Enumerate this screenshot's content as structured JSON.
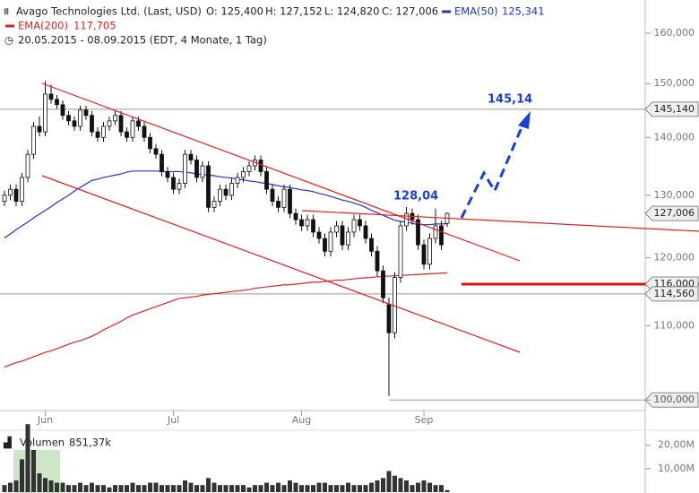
{
  "chart_data": {
    "type": "candlestick",
    "title": "Avago Technologies Ltd. (Last, USD)",
    "quote": [
      "O: 125,400",
      "H: 127,152",
      "L: 124,820",
      "C: 127,006"
    ],
    "subtitle": "20.05.2015 - 08.09.2015 (EDT, 4 Monate, 1 Tag)",
    "categories": [
      null,
      null,
      null,
      null,
      null,
      null,
      null,
      "Jun",
      null,
      null,
      null,
      null,
      null,
      null,
      null,
      null,
      null,
      null,
      null,
      null,
      null,
      null,
      null,
      null,
      null,
      null,
      null,
      null,
      null,
      "Jul",
      null,
      null,
      null,
      null,
      null,
      null,
      null,
      null,
      null,
      null,
      null,
      null,
      null,
      null,
      null,
      null,
      null,
      null,
      null,
      null,
      null,
      "Aug",
      null,
      null,
      null,
      null,
      null,
      null,
      null,
      null,
      null,
      null,
      null,
      null,
      null,
      null,
      null,
      null,
      null,
      null,
      null,
      null,
      "Sep",
      null,
      null,
      null,
      null
    ],
    "ohlc": [
      [
        129,
        130.8,
        128.2,
        130
      ],
      [
        130,
        131.8,
        129.2,
        131
      ],
      [
        131,
        131.8,
        128.2,
        129
      ],
      [
        129,
        133.8,
        128.2,
        133
      ],
      [
        133,
        137.8,
        132.2,
        137
      ],
      [
        137,
        142.8,
        136.2,
        142
      ],
      [
        142,
        143.8,
        140.2,
        141
      ],
      [
        141,
        150.5,
        140.2,
        148
      ],
      [
        148,
        149.8,
        146.2,
        147
      ],
      [
        147,
        147.8,
        145.2,
        146
      ],
      [
        146,
        146.8,
        143.2,
        144
      ],
      [
        144,
        144.8,
        142.2,
        143
      ],
      [
        143,
        143.8,
        141.2,
        142
      ],
      [
        142,
        145.8,
        141.2,
        145
      ],
      [
        145,
        145.8,
        143.2,
        144
      ],
      [
        144,
        144.8,
        140.2,
        141
      ],
      [
        141,
        141.8,
        139.2,
        140
      ],
      [
        140,
        142.8,
        139.2,
        142
      ],
      [
        142,
        143.8,
        141.2,
        143
      ],
      [
        143,
        144.8,
        142.2,
        144
      ],
      [
        144,
        144.8,
        140.2,
        141
      ],
      [
        141,
        141.8,
        139.2,
        140
      ],
      [
        140,
        143.8,
        139.2,
        143
      ],
      [
        143,
        143.8,
        141.2,
        142
      ],
      [
        142,
        142.8,
        139.2,
        140
      ],
      [
        140,
        140.8,
        137.2,
        138
      ],
      [
        138,
        138.8,
        136.2,
        137
      ],
      [
        137,
        137.8,
        133.2,
        134
      ],
      [
        134,
        134.8,
        132.2,
        133
      ],
      [
        133,
        133.8,
        130.2,
        131
      ],
      [
        131,
        132.8,
        130.2,
        132
      ],
      [
        132,
        137.8,
        131.2,
        137
      ],
      [
        137,
        137.8,
        135.2,
        136
      ],
      [
        136,
        136.8,
        132.2,
        133
      ],
      [
        133,
        135.8,
        132.2,
        135
      ],
      [
        135,
        135.8,
        127.2,
        128
      ],
      [
        128,
        129.8,
        127.2,
        129
      ],
      [
        129,
        131.8,
        128.2,
        131
      ],
      [
        131,
        131.8,
        129.2,
        130
      ],
      [
        130,
        132.8,
        129.2,
        132
      ],
      [
        132,
        133.8,
        131.2,
        133
      ],
      [
        133,
        134.8,
        132.2,
        134
      ],
      [
        134,
        135.8,
        133.2,
        135
      ],
      [
        135,
        136.8,
        134.2,
        136
      ],
      [
        136,
        136.8,
        133.2,
        134
      ],
      [
        134,
        134.8,
        130.2,
        131
      ],
      [
        131,
        131.8,
        128.2,
        129
      ],
      [
        129,
        129.8,
        127.2,
        128
      ],
      [
        128,
        131.8,
        127.2,
        131
      ],
      [
        131,
        131.8,
        126.2,
        127
      ],
      [
        127,
        127.8,
        125.2,
        126
      ],
      [
        126,
        126.8,
        124.2,
        125
      ],
      [
        125,
        126.8,
        124.2,
        126
      ],
      [
        126,
        126.8,
        123.2,
        124
      ],
      [
        124,
        124.8,
        122.2,
        123
      ],
      [
        123,
        123.8,
        120.2,
        121
      ],
      [
        121,
        124.8,
        120.2,
        124
      ],
      [
        124,
        125.8,
        123.2,
        125
      ],
      [
        125,
        125.8,
        121.2,
        122
      ],
      [
        122,
        124.8,
        121.2,
        124
      ],
      [
        124,
        126.8,
        123.2,
        126
      ],
      [
        126,
        126.8,
        124.2,
        125
      ],
      [
        125,
        125.8,
        122.2,
        123
      ],
      [
        123,
        123.8,
        120.2,
        121
      ],
      [
        121,
        121.8,
        117.2,
        118
      ],
      [
        118,
        118.8,
        113.2,
        114
      ],
      [
        113,
        114,
        100.5,
        109
      ],
      [
        109,
        117.8,
        108.2,
        117
      ],
      [
        117,
        125.8,
        116.2,
        125
      ],
      [
        125,
        128.04,
        124.2,
        127
      ],
      [
        127,
        127.8,
        125.2,
        126
      ],
      [
        126,
        126.8,
        121.2,
        122
      ],
      [
        122,
        122.8,
        118.2,
        119
      ],
      [
        119,
        123.8,
        118.2,
        123
      ],
      [
        123,
        127.8,
        122.2,
        125
      ],
      [
        125,
        125.8,
        121.2,
        122
      ],
      [
        125.4,
        127.152,
        124.82,
        127.006
      ]
    ],
    "series": [
      {
        "name": "EMA(50)",
        "value_label": "125,341",
        "color": "#2233cc",
        "values": [
          123.1,
          123.7,
          124.4,
          125.0,
          125.6,
          126.3,
          126.9,
          127.5,
          128.1,
          128.8,
          129.4,
          130.0,
          130.7,
          131.3,
          131.9,
          132.5,
          132.7,
          133.0,
          133.2,
          133.4,
          133.6,
          133.9,
          134.1,
          134.1,
          134.1,
          134.1,
          134.1,
          134.0,
          134.0,
          134.0,
          134.0,
          133.9,
          133.8,
          133.6,
          133.5,
          133.4,
          133.3,
          133.1,
          133.0,
          132.9,
          132.7,
          132.6,
          132.4,
          132.3,
          132.1,
          132.0,
          131.8,
          131.6,
          131.4,
          131.3,
          131.1,
          130.9,
          130.8,
          130.6,
          130.3,
          130.1,
          129.8,
          129.5,
          129.2,
          129.0,
          128.7,
          128.4,
          128.0,
          127.5,
          127.1,
          126.7,
          126.3,
          125.9,
          125.7,
          125.6,
          125.4,
          125.2,
          125.2,
          125.2,
          125.3,
          125.3,
          125.341
        ]
      },
      {
        "name": "EMA(200)",
        "value_label": "117,705",
        "color": "#dd2222",
        "values": [
          104.3,
          104.6,
          104.9,
          105.1,
          105.4,
          105.7,
          106.0,
          106.3,
          106.5,
          106.8,
          107.1,
          107.4,
          107.7,
          107.9,
          108.2,
          108.5,
          108.9,
          109.4,
          109.8,
          110.2,
          110.6,
          111.1,
          111.5,
          111.8,
          112.1,
          112.4,
          112.7,
          113.0,
          113.3,
          113.6,
          113.9,
          114.0,
          114.1,
          114.2,
          114.4,
          114.5,
          114.6,
          114.7,
          114.8,
          114.9,
          115.0,
          115.1,
          115.2,
          115.4,
          115.5,
          115.6,
          115.7,
          115.8,
          115.9,
          115.9,
          116.0,
          116.1,
          116.2,
          116.3,
          116.3,
          116.4,
          116.5,
          116.6,
          116.6,
          116.7,
          116.8,
          116.9,
          116.96,
          117.0,
          117.1,
          117.15,
          117.2,
          117.25,
          117.3,
          117.35,
          117.4,
          117.45,
          117.5,
          117.55,
          117.6,
          117.65,
          117.705
        ]
      }
    ],
    "ylim": [
      99,
      166
    ],
    "log_scale": true,
    "yticks": [
      {
        "value": 100,
        "label": "100,000"
      },
      {
        "value": 110,
        "label": "110,000"
      },
      {
        "value": 120,
        "label": "120,000"
      },
      {
        "value": 130,
        "label": "130,000"
      },
      {
        "value": 140,
        "label": "140,000"
      },
      {
        "value": 150,
        "label": "150,000"
      },
      {
        "value": 160,
        "label": "160,000"
      }
    ],
    "levels": [
      {
        "value": 145.14,
        "label": "145,140",
        "line": "gray"
      },
      {
        "value": 127.006,
        "label": "127,006",
        "line": "none"
      },
      {
        "value": 116,
        "label": "116,000",
        "line": "red"
      },
      {
        "value": 114.56,
        "label": "114,560",
        "line": "gray"
      },
      {
        "value": 100,
        "label": "100,000",
        "line": "gray"
      }
    ],
    "annotations": [
      "145,14",
      "128,04"
    ],
    "volume": {
      "name": "Volumen",
      "label": "851,37k",
      "color": "#333333",
      "ylim": [
        0,
        31
      ],
      "yticks": [
        {
          "value": 10,
          "label": "10,00M"
        },
        {
          "value": 20,
          "label": "20,00M"
        }
      ],
      "values": [
        3,
        4,
        5,
        14,
        29,
        18,
        8,
        6,
        5,
        4,
        4,
        3,
        3,
        4,
        3,
        4,
        3,
        3,
        2,
        3,
        3,
        3,
        4,
        3,
        3,
        4,
        4,
        3,
        3,
        3,
        3,
        5,
        4,
        3,
        3,
        6,
        4,
        3,
        3,
        3,
        3,
        3,
        2,
        3,
        3,
        4,
        3,
        4,
        3,
        5,
        4,
        3,
        3,
        3,
        4,
        4,
        3,
        3,
        3,
        4,
        3,
        3,
        3,
        4,
        5,
        6,
        9,
        7,
        6,
        5,
        3,
        4,
        5,
        4,
        3,
        3,
        0.85137
      ]
    }
  }
}
